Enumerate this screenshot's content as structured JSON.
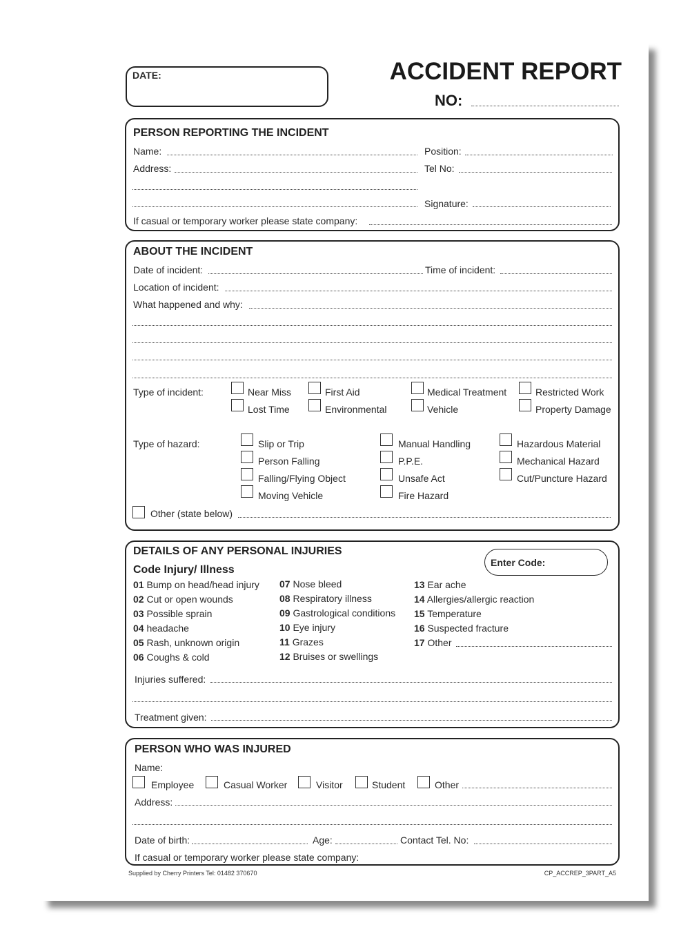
{
  "header": {
    "date_label": "DATE:",
    "title": "ACCIDENT REPORT",
    "no_label": "NO:"
  },
  "person_reporting": {
    "heading": "PERSON REPORTING THE INCIDENT",
    "name": "Name:",
    "position": "Position:",
    "address": "Address:",
    "tel": "Tel No:",
    "signature": "Signature:",
    "casual": "If casual or temporary worker please state company:"
  },
  "incident": {
    "heading": "ABOUT THE INCIDENT",
    "date": "Date of incident:",
    "time": "Time of incident:",
    "location": "Location of incident:",
    "what": "What happened and why:",
    "type_label": "Type of incident:",
    "types": [
      "Near Miss",
      "First Aid",
      "Medical Treatment",
      "Restricted Work",
      "Lost Time",
      "Environmental",
      "Vehicle",
      "Property Damage"
    ],
    "hazard_label": "Type of hazard:",
    "hazards": [
      "Slip or Trip",
      "Person Falling",
      "Falling/Flying Object",
      "Moving Vehicle",
      "Manual Handling",
      "P.P.E.",
      "Unsafe Act",
      "Fire Hazard",
      "Hazardous Material",
      "Mechanical Hazard",
      "Cut/Puncture Hazard"
    ],
    "other": "Other (state below)"
  },
  "injuries": {
    "heading": "DETAILS OF ANY PERSONAL INJURIES",
    "enter_code": "Enter Code:",
    "code_heading": "Code Injury/ Illness",
    "codes": [
      {
        "code": "01",
        "label": "Bump on head/head injury"
      },
      {
        "code": "02",
        "label": "Cut or open wounds"
      },
      {
        "code": "03",
        "label": "Possible sprain"
      },
      {
        "code": "04",
        "label": "headache"
      },
      {
        "code": "05",
        "label": "Rash, unknown origin"
      },
      {
        "code": "06",
        "label": "Coughs & cold"
      },
      {
        "code": "07",
        "label": "Nose bleed"
      },
      {
        "code": "08",
        "label": "Respiratory illness"
      },
      {
        "code": "09",
        "label": "Gastrological conditions"
      },
      {
        "code": "10",
        "label": "Eye injury"
      },
      {
        "code": "11",
        "label": "Grazes"
      },
      {
        "code": "12",
        "label": "Bruises or swellings"
      },
      {
        "code": "13",
        "label": "Ear ache"
      },
      {
        "code": "14",
        "label": "Allergies/allergic reaction"
      },
      {
        "code": "15",
        "label": "Temperature"
      },
      {
        "code": "16",
        "label": "Suspected fracture"
      },
      {
        "code": "17",
        "label": "Other"
      }
    ],
    "suffered": "Injuries suffered:",
    "treatment": "Treatment given:"
  },
  "injured_person": {
    "heading": "PERSON WHO WAS INJURED",
    "name": "Name:",
    "categories": [
      "Employee",
      "Casual Worker",
      "Visitor",
      "Student",
      "Other"
    ],
    "address": "Address:",
    "dob": "Date of birth:",
    "age": "Age:",
    "contact": "Contact Tel. No:",
    "casual": "If casual or temporary worker please state company:"
  },
  "footer": {
    "supplier": "Supplied by Cherry Printers Tel: 01482 370670",
    "ref": "CP_ACCREP_3PART_A5"
  }
}
